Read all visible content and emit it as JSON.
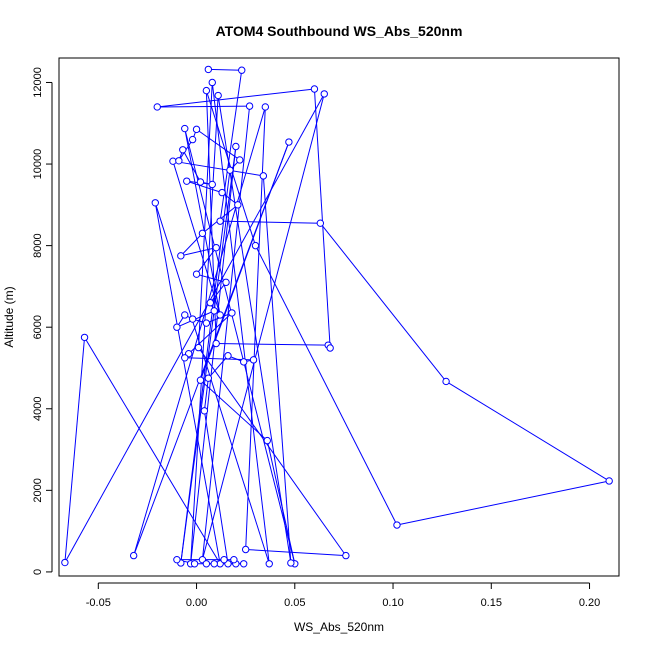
{
  "chart_data": {
    "type": "line",
    "title": "ATOM4 Southbound WS_Abs_520nm",
    "xlabel": "WS_Abs_520nm",
    "ylabel": "Altitude (m)",
    "xlim": [
      -0.07,
      0.215
    ],
    "ylim": [
      -100,
      12600
    ],
    "xticks": [
      -0.05,
      0.0,
      0.05,
      0.1,
      0.15,
      0.2
    ],
    "xtick_labels": [
      "-0.05",
      "0.00",
      "0.05",
      "0.10",
      "0.15",
      "0.20"
    ],
    "yticks": [
      0,
      2000,
      4000,
      6000,
      8000,
      10000,
      12000
    ],
    "ytick_labels": [
      "0",
      "2000",
      "4000",
      "6000",
      "8000",
      "10000",
      "12000"
    ],
    "grid": false,
    "color": "#0000ff",
    "marker": "open-circle",
    "series": [
      {
        "points": [
          {
            "x": 0.006,
            "y": 12320
          },
          {
            "x": 0.023,
            "y": 12300
          },
          {
            "x": 0.012,
            "y": 8600
          },
          {
            "x": 0.063,
            "y": 8550
          },
          {
            "x": 0.127,
            "y": 4670
          },
          {
            "x": 0.21,
            "y": 2230
          },
          {
            "x": 0.102,
            "y": 1150
          },
          {
            "x": 0.03,
            "y": 8000
          },
          {
            "x": 0.005,
            "y": 11800
          },
          {
            "x": 0.01,
            "y": 5600
          },
          {
            "x": 0.067,
            "y": 5560
          },
          {
            "x": 0.068,
            "y": 5490
          },
          {
            "x": 0.06,
            "y": 11840
          },
          {
            "x": -0.02,
            "y": 11400
          },
          {
            "x": 0.027,
            "y": 11420
          },
          {
            "x": 0.003,
            "y": 300
          },
          {
            "x": 0.065,
            "y": 11720
          },
          {
            "x": -0.067,
            "y": 230
          },
          {
            "x": -0.057,
            "y": 5750
          },
          {
            "x": 0.012,
            "y": 200
          },
          {
            "x": -0.021,
            "y": 9050
          },
          {
            "x": 0.037,
            "y": 200
          },
          {
            "x": 0.008,
            "y": 12000
          },
          {
            "x": 0.001,
            "y": 5500
          },
          {
            "x": 0.076,
            "y": 400
          },
          {
            "x": 0.025,
            "y": 550
          },
          {
            "x": 0.035,
            "y": 11400
          },
          {
            "x": -0.032,
            "y": 400
          },
          {
            "x": 0.047,
            "y": 10540
          },
          {
            "x": 0.002,
            "y": 4700
          },
          {
            "x": 0.036,
            "y": 3220
          },
          {
            "x": 0.05,
            "y": 200
          },
          {
            "x": -0.006,
            "y": 10870
          },
          {
            "x": 0.012,
            "y": 6300
          },
          {
            "x": -0.012,
            "y": 10070
          },
          {
            "x": 0.034,
            "y": 9710
          },
          {
            "x": 0.048,
            "y": 220
          },
          {
            "x": 0.011,
            "y": 11680
          },
          {
            "x": -0.003,
            "y": 200
          },
          {
            "x": 0.02,
            "y": 10430
          },
          {
            "x": -0.008,
            "y": 220
          },
          {
            "x": 0.017,
            "y": 9850
          },
          {
            "x": 0.022,
            "y": 10100
          },
          {
            "x": 0.0,
            "y": 10850
          },
          {
            "x": -0.002,
            "y": 10600
          },
          {
            "x": -0.009,
            "y": 10080
          },
          {
            "x": -0.007,
            "y": 10350
          },
          {
            "x": 0.002,
            "y": 9560
          },
          {
            "x": 0.008,
            "y": 9500
          },
          {
            "x": -0.005,
            "y": 9580
          },
          {
            "x": 0.013,
            "y": 9300
          },
          {
            "x": 0.021,
            "y": 9000
          },
          {
            "x": 0.003,
            "y": 8300
          },
          {
            "x": -0.008,
            "y": 7750
          },
          {
            "x": 0.01,
            "y": 7950
          },
          {
            "x": 0.0,
            "y": 7300
          },
          {
            "x": 0.015,
            "y": 7100
          },
          {
            "x": 0.007,
            "y": 6600
          },
          {
            "x": 0.009,
            "y": 6400
          },
          {
            "x": -0.01,
            "y": 6000
          },
          {
            "x": -0.006,
            "y": 6300
          },
          {
            "x": -0.002,
            "y": 6200
          },
          {
            "x": 0.005,
            "y": 6100
          },
          {
            "x": 0.018,
            "y": 6350
          },
          {
            "x": -0.004,
            "y": 5350
          },
          {
            "x": -0.006,
            "y": 5250
          },
          {
            "x": 0.029,
            "y": 5200
          },
          {
            "x": 0.024,
            "y": 5150
          },
          {
            "x": 0.016,
            "y": 5300
          },
          {
            "x": 0.006,
            "y": 4750
          },
          {
            "x": 0.004,
            "y": 3950
          },
          {
            "x": 0.016,
            "y": 200
          },
          {
            "x": 0.02,
            "y": 200
          },
          {
            "x": 0.024,
            "y": 200
          },
          {
            "x": 0.005,
            "y": 200
          },
          {
            "x": 0.009,
            "y": 200
          },
          {
            "x": -0.001,
            "y": 200
          },
          {
            "x": -0.01,
            "y": 300
          },
          {
            "x": 0.014,
            "y": 300
          },
          {
            "x": 0.019,
            "y": 300
          }
        ]
      }
    ]
  }
}
